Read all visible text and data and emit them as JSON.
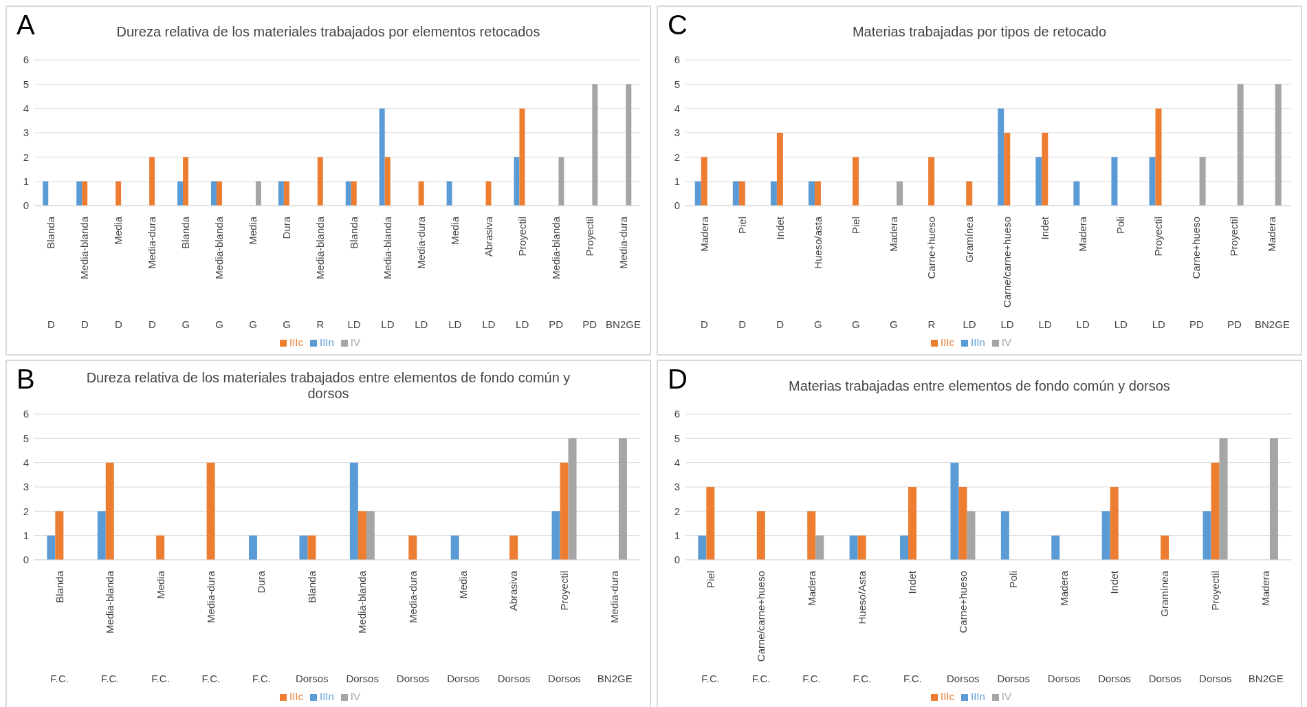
{
  "chart_data": [
    {
      "type": "bar",
      "title": "Dureza relativa de los materiales trabajados por elementos retocados",
      "annotations": [
        "A",
        "D",
        "D",
        "D",
        "D",
        "G",
        "G",
        "G",
        "G",
        "R",
        "LD",
        "LD",
        "LD",
        "LD",
        "LD",
        "LD",
        "PD",
        "PD",
        "BN2GE"
      ],
      "categories": [
        "Blanda",
        "Media-blanda",
        "Media",
        "Media-dura",
        "Blanda",
        "Media-blanda",
        "Media",
        "Dura",
        "Media-blanda",
        "Blanda",
        "Media-blanda",
        "Media-dura",
        "Media",
        "Abrasiva",
        "Proyectil",
        "Media-blanda",
        "Proyectil",
        "Media-dura"
      ],
      "series": [
        {
          "name": "IIIn",
          "color": "#5b9bd5",
          "values": [
            1,
            1,
            null,
            null,
            1,
            1,
            null,
            1,
            null,
            1,
            4,
            null,
            1,
            null,
            2,
            null,
            null,
            null
          ]
        },
        {
          "name": "IIIc",
          "color": "#ed7d31",
          "values": [
            null,
            1,
            1,
            2,
            2,
            1,
            null,
            1,
            2,
            1,
            2,
            1,
            null,
            1,
            4,
            null,
            null,
            null
          ]
        },
        {
          "name": "IV",
          "color": "#a5a5a5",
          "values": [
            null,
            null,
            null,
            null,
            null,
            null,
            1,
            null,
            null,
            null,
            null,
            null,
            null,
            null,
            null,
            2,
            5,
            5
          ]
        }
      ],
      "ylim": [
        0,
        6
      ],
      "yticks": [
        0,
        1,
        2,
        3,
        4,
        5,
        6
      ],
      "grid": "y",
      "legend": "bottom"
    },
    {
      "type": "bar",
      "title": "Materias trabajadas por tipos de retocado",
      "annotations": [
        "C",
        "D",
        "D",
        "D",
        "G",
        "G",
        "G",
        "R",
        "LD",
        "LD",
        "LD",
        "LD",
        "LD",
        "LD",
        "PD",
        "PD",
        "BN2GE"
      ],
      "categories": [
        "Madera",
        "Piel",
        "Indet",
        "Hueso/asta",
        "Piel",
        "Madera",
        "Carne+hueso",
        "Gramínea",
        "Carne/carne+hueso",
        "Indet",
        "Madera",
        "Poli",
        "Proyectil",
        "Carne+hueso",
        "Proyectil",
        "Madera"
      ],
      "series": [
        {
          "name": "IIIn",
          "color": "#5b9bd5",
          "values": [
            1,
            1,
            1,
            1,
            null,
            null,
            null,
            null,
            4,
            2,
            1,
            2,
            2,
            null,
            null,
            null
          ]
        },
        {
          "name": "IIIc",
          "color": "#ed7d31",
          "values": [
            2,
            1,
            3,
            1,
            2,
            null,
            2,
            1,
            3,
            3,
            null,
            null,
            4,
            null,
            null,
            null
          ]
        },
        {
          "name": "IV",
          "color": "#a5a5a5",
          "values": [
            null,
            null,
            null,
            null,
            null,
            1,
            null,
            null,
            null,
            null,
            null,
            null,
            null,
            2,
            5,
            5
          ]
        }
      ],
      "ylim": [
        0,
        6
      ],
      "yticks": [
        0,
        1,
        2,
        3,
        4,
        5,
        6
      ],
      "grid": "y",
      "legend": "bottom"
    },
    {
      "type": "bar",
      "title": "Dureza relativa de los materiales trabajados entre elementos de fondo común y dorsos",
      "annotations": [
        "B",
        "F.C.",
        "F.C.",
        "F.C.",
        "F.C.",
        "F.C.",
        "Dorsos",
        "Dorsos",
        "Dorsos",
        "Dorsos",
        "Dorsos",
        "Dorsos",
        "BN2GE"
      ],
      "categories": [
        "Blanda",
        "Media-blanda",
        "Media",
        "Media-dura",
        "Dura",
        "Blanda",
        "Media-blanda",
        "Media-dura",
        "Media",
        "Abrasiva",
        "Proyectil",
        "Media-dura"
      ],
      "series": [
        {
          "name": "IIIn",
          "color": "#5b9bd5",
          "values": [
            1,
            2,
            null,
            null,
            1,
            1,
            4,
            null,
            1,
            null,
            2,
            null
          ]
        },
        {
          "name": "IIIc",
          "color": "#ed7d31",
          "values": [
            2,
            4,
            1,
            4,
            null,
            1,
            2,
            1,
            null,
            1,
            4,
            null
          ]
        },
        {
          "name": "IV",
          "color": "#a5a5a5",
          "values": [
            null,
            null,
            null,
            null,
            null,
            null,
            2,
            null,
            null,
            null,
            5,
            5
          ]
        }
      ],
      "ylim": [
        0,
        6
      ],
      "yticks": [
        0,
        1,
        2,
        3,
        4,
        5,
        6
      ],
      "grid": "y",
      "legend": "bottom"
    },
    {
      "type": "bar",
      "title": "Materias trabajadas entre elementos de fondo común y dorsos",
      "annotations": [
        "D",
        "F.C.",
        "F.C.",
        "F.C.",
        "F.C.",
        "F.C.",
        "Dorsos",
        "Dorsos",
        "Dorsos",
        "Dorsos",
        "Dorsos",
        "Dorsos",
        "BN2GE"
      ],
      "categories": [
        "Piel",
        "Carne/carne+hueso",
        "Madera",
        "Hueso/Asta",
        "Indet",
        "Carne+hueso",
        "Poli",
        "Madera",
        "Indet",
        "Gramínea",
        "Proyectil",
        "Madera"
      ],
      "series": [
        {
          "name": "IIIn",
          "color": "#5b9bd5",
          "values": [
            1,
            null,
            null,
            1,
            1,
            4,
            2,
            1,
            2,
            null,
            2,
            null
          ]
        },
        {
          "name": "IIIc",
          "color": "#ed7d31",
          "values": [
            3,
            2,
            2,
            1,
            3,
            3,
            null,
            null,
            3,
            1,
            4,
            null
          ]
        },
        {
          "name": "IV",
          "color": "#a5a5a5",
          "values": [
            null,
            null,
            1,
            null,
            null,
            2,
            null,
            null,
            null,
            null,
            5,
            5
          ]
        }
      ],
      "ylim": [
        0,
        6
      ],
      "yticks": [
        0,
        1,
        2,
        3,
        4,
        5,
        6
      ],
      "grid": "y",
      "legend": "bottom"
    }
  ]
}
